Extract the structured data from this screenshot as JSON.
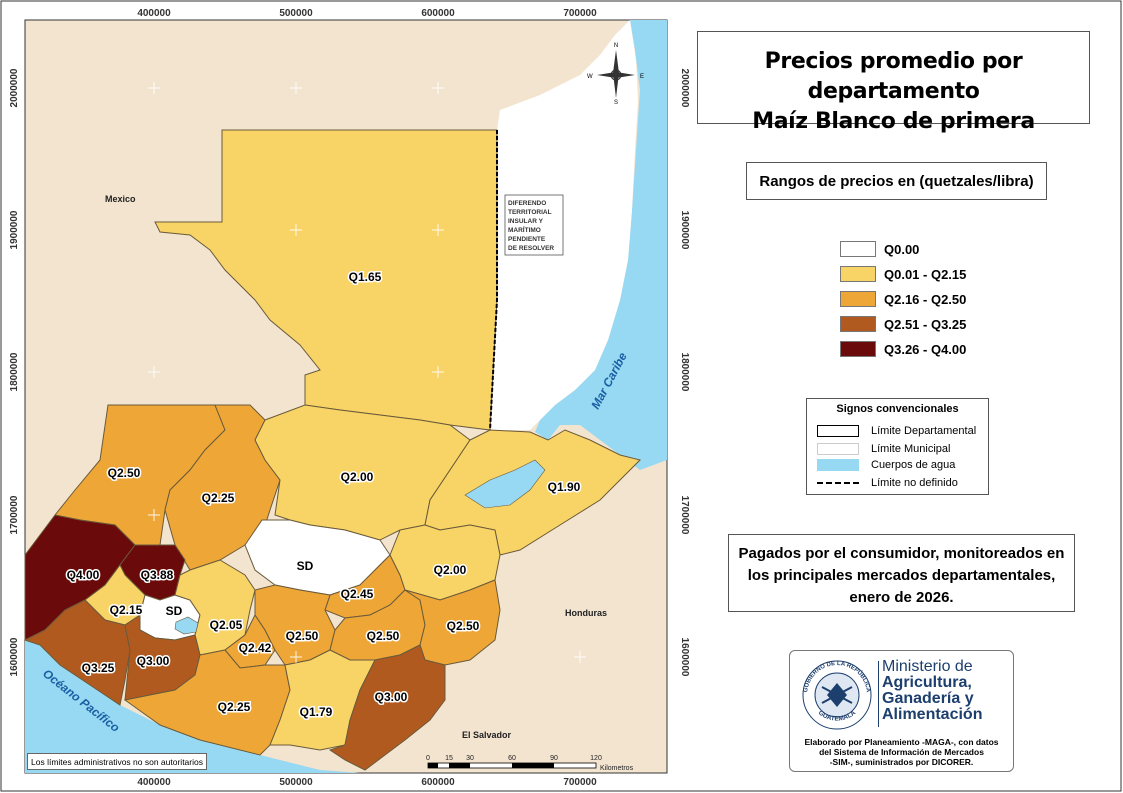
{
  "title": {
    "line1": "Precios promedio por departamento",
    "line2": "Maíz Blanco de primera"
  },
  "legend": {
    "title": "Rangos de precios en (quetzales/libra)",
    "items": [
      {
        "label": "Q0.00",
        "color": "#ffffff"
      },
      {
        "label": "Q0.01 - Q2.15",
        "color": "#f8d466"
      },
      {
        "label": "Q2.16 - Q2.50",
        "color": "#eea737"
      },
      {
        "label": "Q2.51 - Q3.25",
        "color": "#b05a20"
      },
      {
        "label": "Q3.26 - Q4.00",
        "color": "#6b0a0a"
      }
    ]
  },
  "signs": {
    "title": "Signos convencionales",
    "items": [
      {
        "label": "Límite Departamental",
        "kind": "dept-boundary"
      },
      {
        "label": "Límite Municipal",
        "kind": "muni-boundary"
      },
      {
        "label": "Cuerpos de agua",
        "kind": "water",
        "color": "#97d9f2"
      },
      {
        "label": "Límite no definido",
        "kind": "undefined-boundary"
      }
    ]
  },
  "note": {
    "line1": "Pagados por el consumidor, monitoreados en",
    "line2": "los principales mercados departamentales,",
    "line3": "enero de 2026."
  },
  "logo": {
    "ministry_line1": "Ministerio de",
    "ministry_line2": "Agricultura,",
    "ministry_line3": "Ganadería y",
    "ministry_line4": "Alimentación",
    "seal_top": "GOBIERNO DE LA REPÚBLICA",
    "seal_bottom": "GUATEMALA",
    "credit_line1": "Elaborado por Planeamiento -MAGA-, con datos",
    "credit_line2": "del Sistema de Información de Mercados",
    "credit_line3": "-SIM-, suministrados por DICORER."
  },
  "admin_note": "Los límites administrativos no son autoritarios",
  "map": {
    "x_ticks": [
      "400000",
      "500000",
      "600000",
      "700000"
    ],
    "y_ticks": [
      "2000000",
      "1900000",
      "1800000",
      "1700000",
      "1600000"
    ],
    "places": {
      "mexico": "Mexico",
      "honduras": "Honduras",
      "el_salvador": "El Salvador",
      "mar_caribe": "Mar Caribe",
      "oceano_pacifico": "Océano Pacífico"
    },
    "dispute_lines": [
      "DIFERENDO",
      "TERRITORIAL",
      "INSULAR Y",
      "MARÍTIMO",
      "PENDIENTE",
      "DE RESOLVER"
    ],
    "compass": {
      "n": "N",
      "s": "S",
      "e": "E",
      "w": "W"
    },
    "scale": {
      "ticks": [
        "0",
        "15",
        "30",
        "60",
        "90",
        "120"
      ],
      "unit": "Kilometros"
    },
    "departments": [
      {
        "id": "peten",
        "label": "Q1.65",
        "color": "#f8d466"
      },
      {
        "id": "huehuetenango",
        "label": "Q2.50",
        "color": "#eea737"
      },
      {
        "id": "quiche",
        "label": "Q2.25",
        "color": "#eea737"
      },
      {
        "id": "alta-verapaz",
        "label": "Q2.00",
        "color": "#f8d466"
      },
      {
        "id": "izabal",
        "label": "Q1.90",
        "color": "#f8d466"
      },
      {
        "id": "san-marcos",
        "label": "Q4.00",
        "color": "#6b0a0a"
      },
      {
        "id": "quetzaltenango",
        "label": "Q3.88",
        "color": "#6b0a0a"
      },
      {
        "id": "totonicapan",
        "label": "Q2.15",
        "color": "#f8d466"
      },
      {
        "id": "solola",
        "label": "SD",
        "color": "#ffffff"
      },
      {
        "id": "baja-verapaz",
        "label": "SD",
        "color": "#ffffff"
      },
      {
        "id": "el-progreso",
        "label": "Q2.45",
        "color": "#eea737"
      },
      {
        "id": "zacapa",
        "label": "Q2.00",
        "color": "#f8d466"
      },
      {
        "id": "chimaltenango",
        "label": "Q2.05",
        "color": "#f8d466"
      },
      {
        "id": "sacatepequez",
        "label": "Q2.42",
        "color": "#eea737"
      },
      {
        "id": "guatemala",
        "label": "Q2.50",
        "color": "#eea737"
      },
      {
        "id": "jalapa",
        "label": "Q2.50",
        "color": "#eea737"
      },
      {
        "id": "chiquimula",
        "label": "Q2.50",
        "color": "#eea737"
      },
      {
        "id": "retalhuleu",
        "label": "Q3.25",
        "color": "#b05a20"
      },
      {
        "id": "suchitepequez",
        "label": "Q3.00",
        "color": "#b05a20"
      },
      {
        "id": "escuintla",
        "label": "Q2.25",
        "color": "#eea737"
      },
      {
        "id": "santa-rosa",
        "label": "Q1.79",
        "color": "#f8d466"
      },
      {
        "id": "jutiapa",
        "label": "Q3.00",
        "color": "#b05a20"
      }
    ]
  }
}
